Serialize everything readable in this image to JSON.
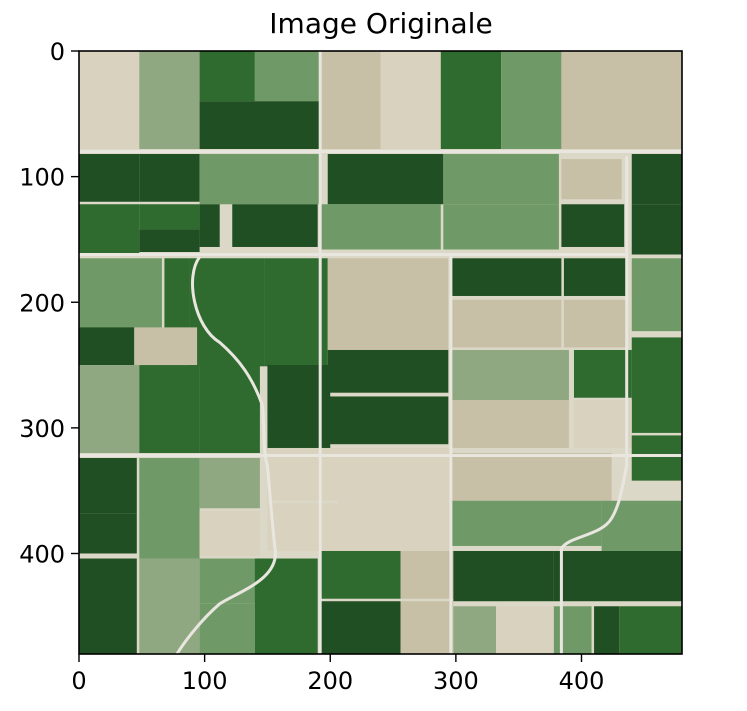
{
  "title": "Image Originale",
  "image_description": "aerial-farmland-fields",
  "image_size": [
    480,
    480
  ],
  "x_ticks": [
    0,
    100,
    200,
    300,
    400
  ],
  "y_ticks": [
    0,
    100,
    200,
    300,
    400
  ],
  "colors": {
    "dark_green": "#1f4f22",
    "mid_green": "#2f6a2f",
    "light_green": "#6f9a68",
    "sage": "#8fa882",
    "tan": "#c7c0a7",
    "beige": "#d8d2bf",
    "road": "#e8e6df"
  }
}
